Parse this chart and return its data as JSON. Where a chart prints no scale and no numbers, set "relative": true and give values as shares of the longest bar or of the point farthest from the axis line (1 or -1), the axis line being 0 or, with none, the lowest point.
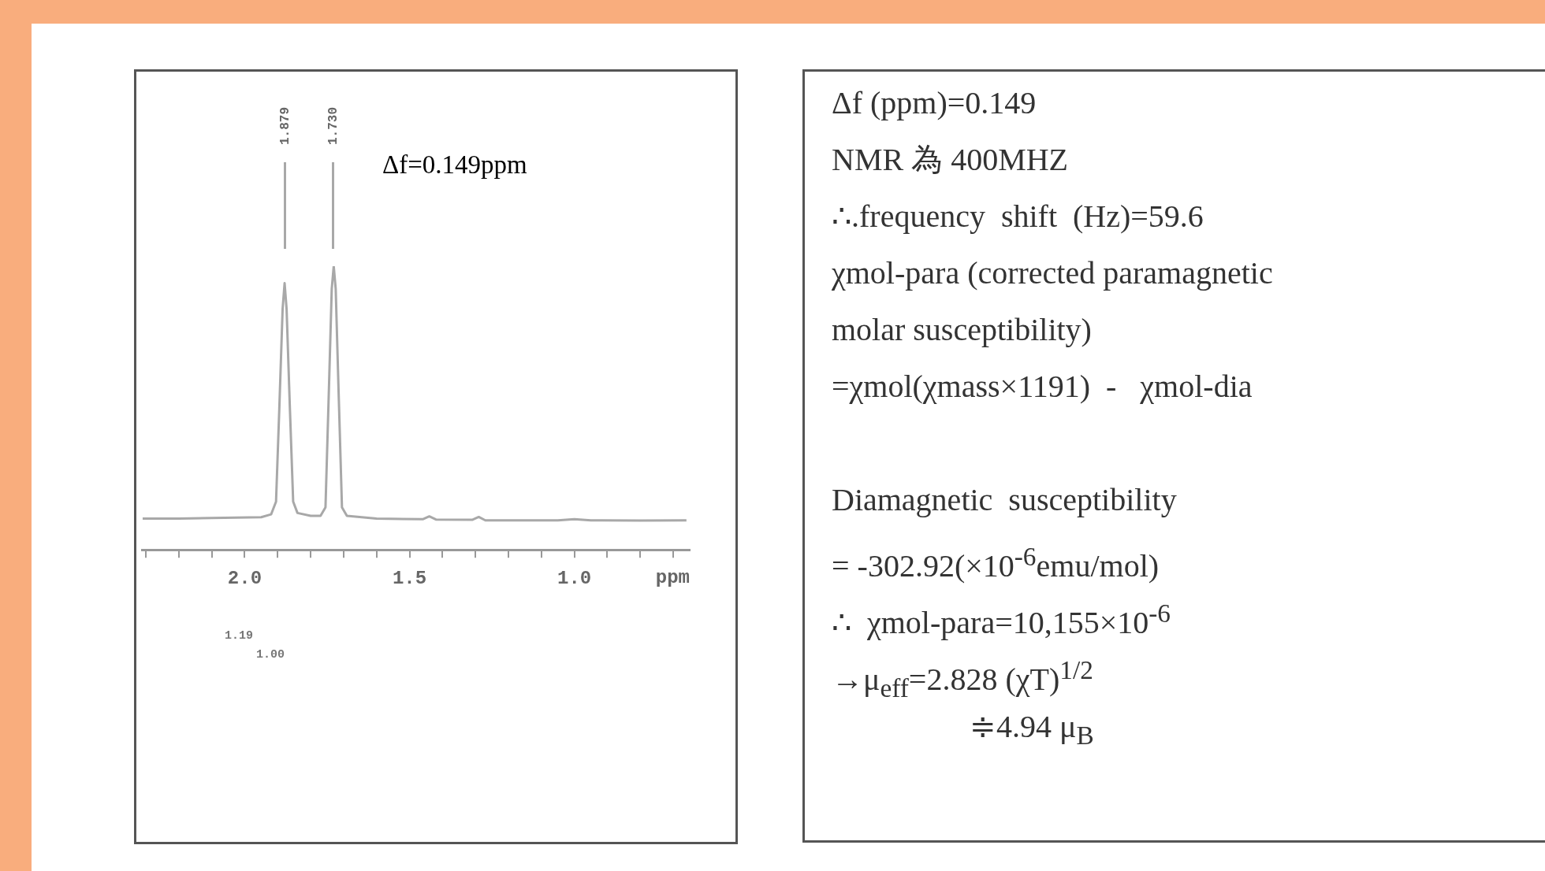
{
  "chart_data": [
    {
      "type": "line",
      "relative": true,
      "xlabel": "ppm",
      "color": "#a8a8a8",
      "marker": "none",
      "grid": false,
      "xlim": [
        2.31,
        0.65
      ],
      "xticks": [
        {
          "value": 2.3,
          "label": null
        },
        {
          "value": 2.2,
          "label": null
        },
        {
          "value": 2.1,
          "label": null
        },
        {
          "value": 2.0,
          "label": "2.0"
        },
        {
          "value": 1.9,
          "label": null
        },
        {
          "value": 1.8,
          "label": null
        },
        {
          "value": 1.7,
          "label": null
        },
        {
          "value": 1.6,
          "label": null
        },
        {
          "value": 1.5,
          "label": "1.5"
        },
        {
          "value": 1.4,
          "label": null
        },
        {
          "value": 1.3,
          "label": null
        },
        {
          "value": 1.2,
          "label": null
        },
        {
          "value": 1.1,
          "label": null
        },
        {
          "value": 1.0,
          "label": "1.0"
        },
        {
          "value": 0.9,
          "label": null
        },
        {
          "value": 0.8,
          "label": null
        },
        {
          "value": 0.7,
          "label": null
        }
      ],
      "x": [
        2.31,
        2.2,
        2.1,
        1.95,
        1.92,
        1.905,
        1.895,
        1.885,
        1.879,
        1.873,
        1.863,
        1.853,
        1.84,
        1.8,
        1.77,
        1.755,
        1.745,
        1.736,
        1.73,
        1.724,
        1.715,
        1.705,
        1.69,
        1.6,
        1.46,
        1.44,
        1.42,
        1.31,
        1.29,
        1.27,
        1.2,
        1.05,
        1.0,
        0.95,
        0.8,
        0.66
      ],
      "values": [
        0.11,
        0.11,
        0.112,
        0.115,
        0.125,
        0.17,
        0.5,
        0.85,
        0.94,
        0.85,
        0.5,
        0.17,
        0.13,
        0.12,
        0.12,
        0.15,
        0.55,
        0.92,
        1,
        0.92,
        0.55,
        0.15,
        0.12,
        0.11,
        0.108,
        0.118,
        0.107,
        0.106,
        0.116,
        0.104,
        0.104,
        0.104,
        0.108,
        0.104,
        0.103,
        0.104
      ],
      "annotations": [
        "Δf=0.149ppm",
        "1.879",
        "1.730",
        "1.19",
        "1.00"
      ]
    },
    {
      "type": "other",
      "annotations": [
        "Δf (ppm)=0.149",
        "NMR 為 400MHZ",
        "∴.frequency  shift  (Hz)=59.6",
        "χmol-para (corrected paramagnetic",
        "molar susceptibility)",
        "=χmol(χmass×1191)  -   χmol-dia",
        "Diamagnetic  susceptibility",
        "= -302.92(×10$^{-6}$emu/mol)",
        "∴  χmol-para=10,155×10$^{-6}$",
        "→μ$_{eff}$=2.828 (χT)$^{1/2}$",
        "≑4.94 μ$_{B}$"
      ]
    }
  ]
}
